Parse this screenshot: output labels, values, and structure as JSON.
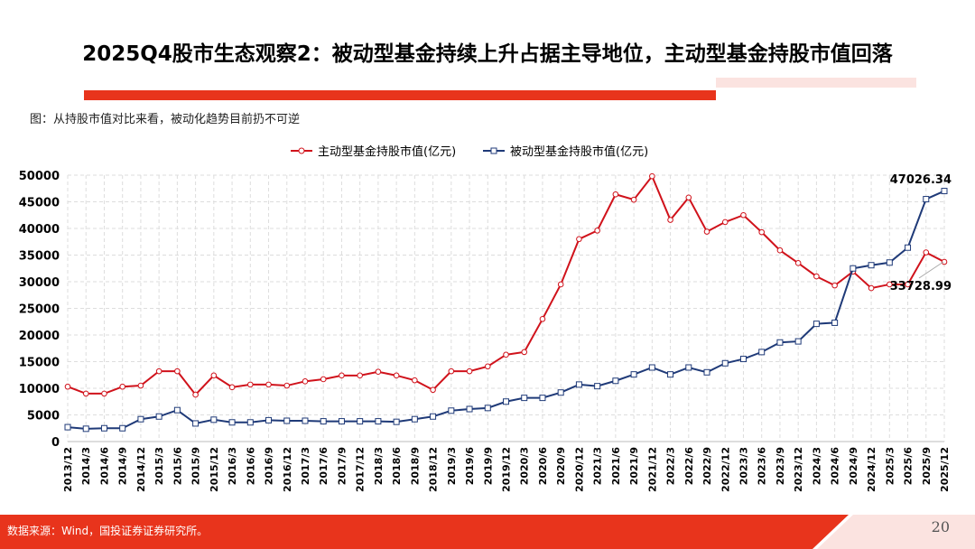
{
  "title": "2025Q4股市生态观察2：被动型基金持续上升占据主导地位，主动型基金持股市值回落",
  "subtitle": "图：从持股市值对比来看，被动化趋势目前扔不可逆",
  "footer": {
    "source": "数据来源：Wind，国投证券证券研究所。",
    "page": "20"
  },
  "colors": {
    "accent": "#e8341c",
    "active": "#d0121b",
    "passive": "#1f3a78"
  },
  "chart_data": {
    "type": "line",
    "ylim": [
      0,
      50000
    ],
    "yticks": [
      0,
      5000,
      10000,
      15000,
      20000,
      25000,
      30000,
      35000,
      40000,
      45000,
      50000
    ],
    "grid": true,
    "legend": "top",
    "categories": [
      "2013/12",
      "2014/3",
      "2014/6",
      "2014/9",
      "2014/12",
      "2015/3",
      "2015/6",
      "2015/9",
      "2015/12",
      "2016/3",
      "2016/6",
      "2016/9",
      "2016/12",
      "2017/3",
      "2017/6",
      "2017/9",
      "2017/12",
      "2018/3",
      "2018/6",
      "2018/9",
      "2018/12",
      "2019/3",
      "2019/6",
      "2019/9",
      "2019/12",
      "2020/3",
      "2020/6",
      "2020/9",
      "2020/12",
      "2021/3",
      "2021/6",
      "2021/9",
      "2021/12",
      "2022/3",
      "2022/6",
      "2022/9",
      "2022/12",
      "2023/3",
      "2023/6",
      "2023/9",
      "2023/12",
      "2024/3",
      "2024/6",
      "2024/9",
      "2024/12",
      "2025/3",
      "2025/6",
      "2025/9",
      "2025/12"
    ],
    "series": [
      {
        "name": "主动型基金持股市值(亿元)",
        "marker": "circle",
        "values": [
          10300,
          9000,
          9000,
          10300,
          10500,
          13200,
          13200,
          8800,
          12400,
          10200,
          10700,
          10700,
          10500,
          11300,
          11700,
          12400,
          12400,
          13100,
          12400,
          11500,
          9700,
          13200,
          13200,
          14100,
          16300,
          16800,
          23000,
          29500,
          38000,
          39600,
          46400,
          45400,
          49800,
          41600,
          45800,
          39400,
          41200,
          42500,
          39300,
          35900,
          33500,
          31000,
          29300,
          31900,
          28800,
          29500,
          29500,
          35500,
          33728.99
        ],
        "last_label": "33728.99"
      },
      {
        "name": "被动型基金持股市值(亿元)",
        "marker": "square",
        "values": [
          2700,
          2400,
          2500,
          2500,
          4200,
          4700,
          5900,
          3400,
          4100,
          3600,
          3600,
          4000,
          3900,
          3900,
          3800,
          3800,
          3800,
          3800,
          3700,
          4200,
          4700,
          5800,
          6100,
          6300,
          7500,
          8200,
          8200,
          9200,
          10700,
          10400,
          11400,
          12600,
          13900,
          12600,
          13900,
          13000,
          14700,
          15500,
          16800,
          18600,
          18800,
          22100,
          22300,
          32500,
          33100,
          33600,
          36400,
          45500,
          47026.34
        ],
        "last_label": "47026.34"
      }
    ]
  }
}
